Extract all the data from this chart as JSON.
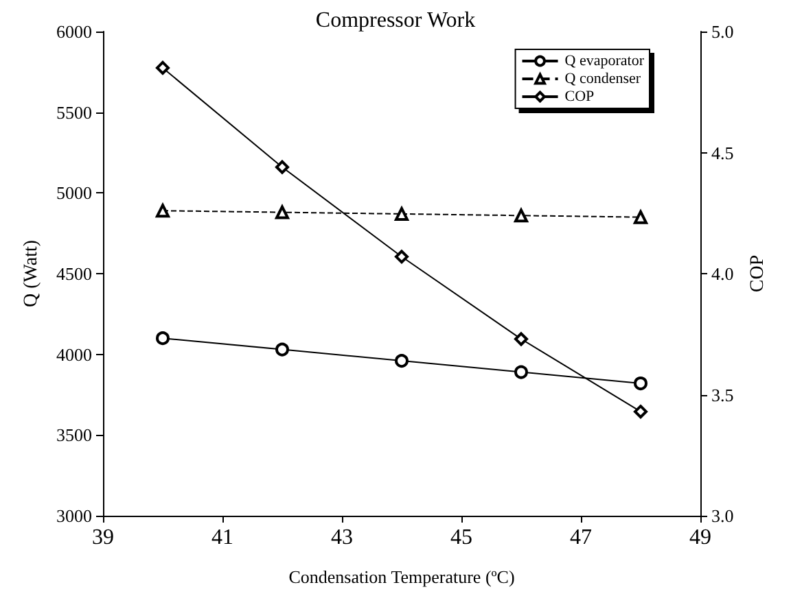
{
  "chart_data": {
    "type": "line",
    "title": "Compressor Work",
    "xlabel": "Condensation Temperature (ºC)",
    "ylabel": "Q (Watt)",
    "y2label": "COP",
    "x": [
      40,
      42,
      44,
      46,
      48
    ],
    "series": [
      {
        "name": "Q evaporator",
        "color": "#000000",
        "marker": "circle",
        "line_style": "solid",
        "values": [
          4100,
          4030,
          3960,
          3890,
          3820
        ]
      },
      {
        "name": "Q condenser",
        "color": "#000000",
        "marker": "triangle",
        "line_style": "dashed",
        "values": [
          4890,
          4880,
          4870,
          4860,
          4850
        ]
      },
      {
        "name": "COP",
        "color": "#000000",
        "marker": "diamond",
        "line_style": "solid",
        "axis": "y2",
        "values": [
          4.85,
          4.44,
          4.07,
          3.73,
          3.43
        ]
      }
    ],
    "xlim": [
      39,
      49
    ],
    "xticks": [
      39,
      41,
      43,
      45,
      47,
      49
    ],
    "ylim": [
      3000,
      6000
    ],
    "yticks": [
      3000,
      3500,
      4000,
      4500,
      5000,
      5500,
      6000
    ],
    "y2lim": [
      3.0,
      5.0
    ],
    "y2ticks": [
      {
        "value": 3.0,
        "label": "3.0"
      },
      {
        "value": 3.5,
        "label": "3.5"
      },
      {
        "value": 4.0,
        "label": "4.0"
      },
      {
        "value": 4.5,
        "label": "4.5"
      },
      {
        "value": 5.0,
        "label": "5.0"
      }
    ],
    "grid": false,
    "legend": "top right"
  }
}
